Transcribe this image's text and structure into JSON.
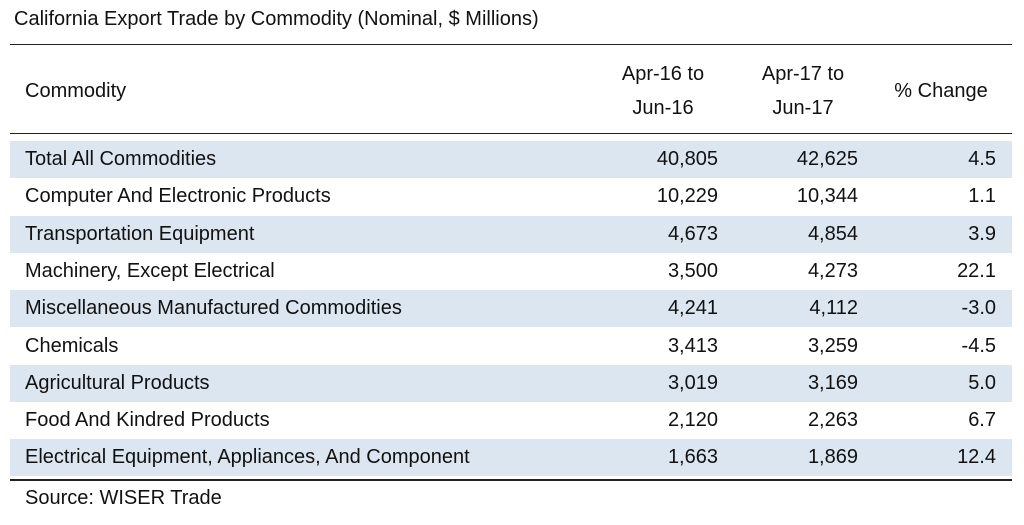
{
  "title": "California Export Trade by Commodity (Nominal, $ Millions)",
  "table": {
    "header": [
      "Commodity",
      "Apr-16 to Jun-16",
      "Apr-17 to Jun-17",
      "% Change"
    ],
    "rows": [
      [
        "Total All Commodities",
        "40,805",
        "42,625",
        "4.5"
      ],
      [
        "Computer And Electronic Products",
        "10,229",
        "10,344",
        "1.1"
      ],
      [
        "Transportation Equipment",
        "4,673",
        "4,854",
        "3.9"
      ],
      [
        "Machinery, Except Electrical",
        "3,500",
        "4,273",
        "22.1"
      ],
      [
        "Miscellaneous Manufactured Commodities",
        "4,241",
        "4,112",
        "-3.0"
      ],
      [
        "Chemicals",
        "3,413",
        "3,259",
        "-4.5"
      ],
      [
        "Agricultural Products",
        "3,019",
        "3,169",
        "5.0"
      ],
      [
        "Food And Kindred Products",
        "2,120",
        "2,263",
        "6.7"
      ],
      [
        "Electrical Equipment, Appliances, And Component",
        "1,663",
        "1,869",
        "12.4"
      ]
    ]
  },
  "source": "Source: WISER Trade"
}
